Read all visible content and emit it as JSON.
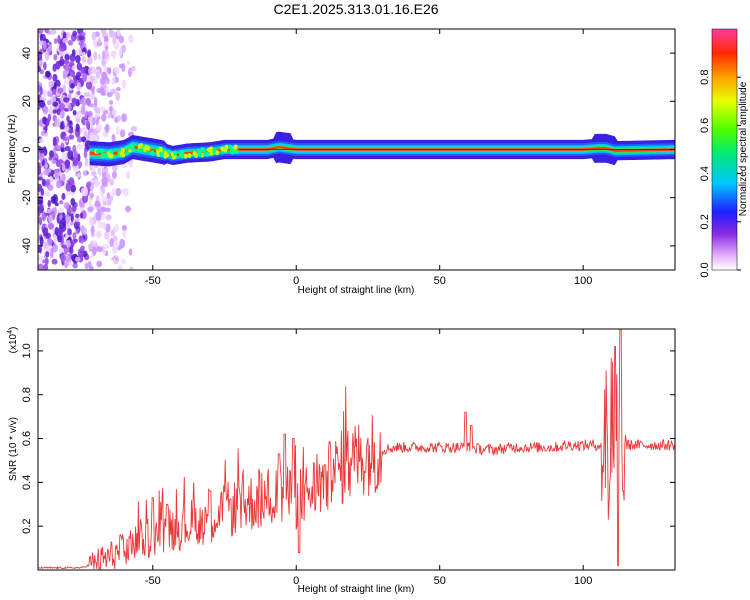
{
  "title": "C2E1.2025.313.01.16.E26",
  "chart_data": [
    {
      "type": "heatmap",
      "xlabel": "Height of straight line (km)",
      "ylabel": "Frequency (Hz)",
      "xlim": [
        -90,
        132
      ],
      "ylim": [
        -50,
        50
      ],
      "xticks": [
        -50,
        0,
        50,
        100
      ],
      "yticks": [
        -40,
        -20,
        0,
        20,
        40
      ],
      "ridge": {
        "description_points_x": [
          -72,
          -65,
          -60,
          -57,
          -52,
          -47,
          -43,
          -38,
          -30,
          -25,
          -20,
          -10,
          -6,
          -3,
          0,
          20,
          60,
          100,
          105,
          108,
          111,
          132
        ],
        "frequency_hz": [
          -1.5,
          -2,
          -1,
          1,
          0,
          -1,
          -2.5,
          -1.5,
          -1,
          0,
          0,
          0,
          1,
          0.5,
          0,
          0,
          0,
          0,
          0.5,
          0.5,
          -0.5,
          0
        ]
      },
      "colorbar": {
        "label": "Normalized spectral amplitude",
        "range": [
          0,
          1
        ],
        "ticks": [
          "0.0",
          "0.2",
          "0.4",
          "0.6",
          "0.8"
        ]
      }
    },
    {
      "type": "line",
      "xlabel": "Height of straight line (km)",
      "ylabel": "SNR (10 * v/v)",
      "y_multiplier": "(x10",
      "y_multiplier_exp": "4",
      "y_multiplier_close": ")",
      "xlim": [
        -90,
        132
      ],
      "ylim": [
        0,
        1.1
      ],
      "xticks": [
        -50,
        0,
        50,
        100
      ],
      "yticks": [
        "0.2",
        "0.4",
        "0.6",
        "0.8",
        "1.0"
      ],
      "series_color": "#e83a3a",
      "trend_x": [
        -90,
        -75,
        -70,
        -65,
        -60,
        -55,
        -50,
        -45,
        -40,
        -35,
        -30,
        -25,
        -20,
        -15,
        -10,
        -5,
        0,
        5,
        10,
        15,
        20,
        25,
        30,
        35,
        40,
        45,
        50,
        55,
        60,
        65,
        70,
        75,
        80,
        85,
        90,
        95,
        100,
        105,
        110,
        115,
        120,
        125,
        132
      ],
      "trend_y": [
        0.01,
        0.01,
        0.03,
        0.06,
        0.09,
        0.13,
        0.16,
        0.18,
        0.2,
        0.22,
        0.24,
        0.27,
        0.29,
        0.31,
        0.33,
        0.34,
        0.32,
        0.36,
        0.41,
        0.46,
        0.5,
        0.53,
        0.55,
        0.56,
        0.56,
        0.56,
        0.56,
        0.56,
        0.56,
        0.55,
        0.55,
        0.56,
        0.56,
        0.56,
        0.56,
        0.57,
        0.57,
        0.57,
        0.57,
        0.57,
        0.57,
        0.57,
        0.57
      ],
      "spikes": [
        {
          "x": -50,
          "y": 0.33
        },
        {
          "x": -45,
          "y": 0.3
        },
        {
          "x": -30,
          "y": 0.36
        },
        {
          "x": -6,
          "y": 0.53
        },
        {
          "x": -4,
          "y": 0.62
        },
        {
          "x": -1,
          "y": 0.6
        },
        {
          "x": 1,
          "y": 0.08
        },
        {
          "x": 10,
          "y": 0.48
        },
        {
          "x": 59,
          "y": 0.72
        },
        {
          "x": 61,
          "y": 0.66
        },
        {
          "x": 108,
          "y": 0.76
        },
        {
          "x": 109,
          "y": 0.3
        },
        {
          "x": 110,
          "y": 0.95
        },
        {
          "x": 111,
          "y": 1.02
        },
        {
          "x": 112,
          "y": 0.02
        },
        {
          "x": 113,
          "y": 1.1
        },
        {
          "x": 114,
          "y": 0.36
        }
      ]
    }
  ]
}
